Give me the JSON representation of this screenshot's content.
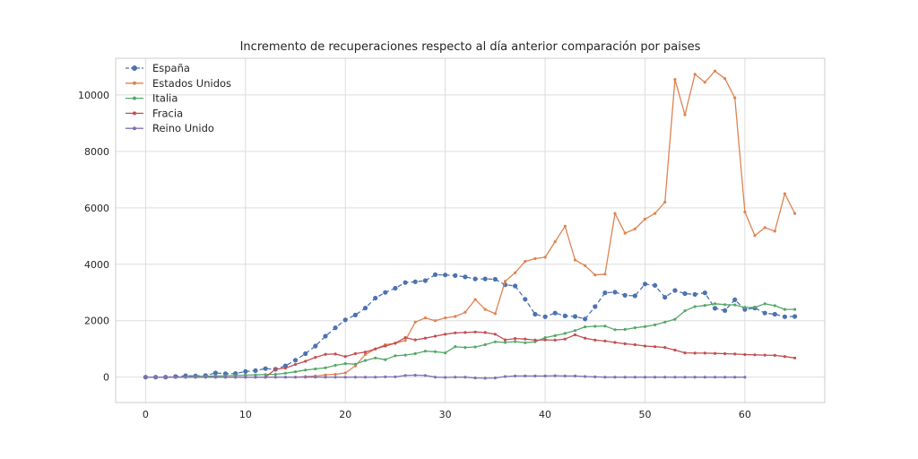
{
  "chart_data": {
    "type": "line",
    "title": "Incremento de recuperaciones respecto al día anterior comparación por paises",
    "xlabel": "",
    "ylabel": "",
    "xlim": [
      -3,
      68
    ],
    "ylim": [
      -900,
      11300
    ],
    "x_ticks": [
      0,
      10,
      20,
      30,
      40,
      50,
      60
    ],
    "y_ticks": [
      0,
      2000,
      4000,
      6000,
      8000,
      10000
    ],
    "grid": true,
    "legend_position": "upper-left",
    "series": [
      {
        "name": "España",
        "color": "#4c72b0",
        "dashed": true,
        "marker_radius": 2.6,
        "x": [
          0,
          1,
          2,
          3,
          4,
          5,
          6,
          7,
          8,
          9,
          10,
          11,
          12,
          13,
          14,
          15,
          16,
          17,
          18,
          19,
          20,
          21,
          22,
          23,
          24,
          25,
          26,
          27,
          28,
          29,
          30,
          31,
          32,
          33,
          34,
          35,
          36,
          37,
          38,
          39,
          40,
          41,
          42,
          43,
          44,
          45,
          46,
          47,
          48,
          49,
          50,
          51,
          52,
          53,
          54,
          55,
          56,
          57,
          58,
          59,
          60,
          61,
          62,
          63,
          64,
          65
        ],
        "values": [
          0,
          0,
          0,
          20,
          50,
          40,
          60,
          150,
          120,
          130,
          200,
          230,
          300,
          280,
          400,
          600,
          830,
          1100,
          1450,
          1750,
          2030,
          2200,
          2450,
          2800,
          3000,
          3150,
          3350,
          3380,
          3420,
          3630,
          3620,
          3600,
          3550,
          3480,
          3480,
          3470,
          3270,
          3230,
          2760,
          2230,
          2140,
          2270,
          2170,
          2150,
          2060,
          2500,
          2990,
          3010,
          2900,
          2880,
          3300,
          3250,
          2830,
          3070,
          2960,
          2930,
          2990,
          2440,
          2360,
          2740,
          2400,
          2450,
          2270,
          2230,
          2140,
          2150
        ]
      },
      {
        "name": "Estados Unidos",
        "color": "#dd8452",
        "dashed": false,
        "marker_radius": 1.6,
        "x": [
          0,
          1,
          2,
          3,
          4,
          5,
          6,
          7,
          8,
          9,
          10,
          11,
          12,
          13,
          14,
          15,
          16,
          17,
          18,
          19,
          20,
          21,
          22,
          23,
          24,
          25,
          26,
          27,
          28,
          29,
          30,
          31,
          32,
          33,
          34,
          35,
          36,
          37,
          38,
          39,
          40,
          41,
          42,
          43,
          44,
          45,
          46,
          47,
          48,
          49,
          50,
          51,
          52,
          53,
          54,
          55,
          56,
          57,
          58,
          59,
          60,
          61,
          62,
          63,
          64,
          65
        ],
        "values": [
          0,
          0,
          0,
          0,
          0,
          0,
          0,
          0,
          0,
          0,
          0,
          0,
          0,
          0,
          0,
          0,
          20,
          40,
          80,
          100,
          150,
          400,
          800,
          1000,
          1150,
          1200,
          1300,
          1950,
          2100,
          2000,
          2100,
          2150,
          2300,
          2750,
          2400,
          2250,
          3400,
          3700,
          4100,
          4200,
          4250,
          4800,
          5350,
          4150,
          3950,
          3620,
          3650,
          5800,
          5100,
          5250,
          5600,
          5800,
          6200,
          10550,
          9300,
          10730,
          10450,
          10850,
          10580,
          9900,
          5850,
          5020,
          5300,
          5170,
          6500,
          5800
        ]
      },
      {
        "name": "Italia",
        "color": "#55a868",
        "dashed": false,
        "marker_radius": 1.6,
        "x": [
          0,
          1,
          2,
          3,
          4,
          5,
          6,
          7,
          8,
          9,
          10,
          11,
          12,
          13,
          14,
          15,
          16,
          17,
          18,
          19,
          20,
          21,
          22,
          23,
          24,
          25,
          26,
          27,
          28,
          29,
          30,
          31,
          32,
          33,
          34,
          35,
          36,
          37,
          38,
          39,
          40,
          41,
          42,
          43,
          44,
          45,
          46,
          47,
          48,
          49,
          50,
          51,
          52,
          53,
          54,
          55,
          56,
          57,
          58,
          59,
          60,
          61,
          62,
          63,
          64,
          65
        ],
        "values": [
          0,
          0,
          0,
          0,
          10,
          20,
          30,
          40,
          50,
          60,
          70,
          80,
          90,
          100,
          140,
          190,
          250,
          290,
          330,
          420,
          480,
          460,
          590,
          680,
          620,
          760,
          780,
          830,
          920,
          900,
          860,
          1080,
          1050,
          1070,
          1150,
          1250,
          1230,
          1260,
          1220,
          1250,
          1400,
          1470,
          1550,
          1650,
          1780,
          1800,
          1810,
          1680,
          1690,
          1750,
          1790,
          1850,
          1950,
          2050,
          2350,
          2500,
          2540,
          2600,
          2570,
          2560,
          2470,
          2470,
          2600,
          2530,
          2400,
          2400
        ]
      },
      {
        "name": "Fracia",
        "color": "#c44e52",
        "dashed": false,
        "marker_radius": 1.6,
        "x": [
          0,
          1,
          2,
          3,
          4,
          5,
          6,
          7,
          8,
          9,
          10,
          11,
          12,
          13,
          14,
          15,
          16,
          17,
          18,
          19,
          20,
          21,
          22,
          23,
          24,
          25,
          26,
          27,
          28,
          29,
          30,
          31,
          32,
          33,
          34,
          35,
          36,
          37,
          38,
          39,
          40,
          41,
          42,
          43,
          44,
          45,
          46,
          47,
          48,
          49,
          50,
          51,
          52,
          53,
          54,
          55,
          56,
          57,
          58,
          59,
          60,
          61,
          62,
          63,
          64,
          65
        ],
        "values": [
          0,
          0,
          0,
          0,
          0,
          0,
          0,
          0,
          0,
          0,
          0,
          0,
          0,
          280,
          320,
          450,
          560,
          700,
          810,
          820,
          730,
          830,
          890,
          1000,
          1100,
          1200,
          1400,
          1320,
          1380,
          1450,
          1520,
          1570,
          1580,
          1600,
          1580,
          1520,
          1320,
          1370,
          1350,
          1310,
          1320,
          1310,
          1350,
          1500,
          1380,
          1310,
          1280,
          1230,
          1180,
          1150,
          1100,
          1080,
          1050,
          960,
          860,
          850,
          850,
          840,
          830,
          820,
          800,
          790,
          780,
          770,
          730,
          680
        ]
      },
      {
        "name": "Reino Unido",
        "color": "#8172b3",
        "dashed": false,
        "marker_radius": 1.6,
        "x": [
          0,
          1,
          2,
          3,
          4,
          5,
          6,
          7,
          8,
          9,
          10,
          11,
          12,
          13,
          14,
          15,
          16,
          17,
          18,
          19,
          20,
          21,
          22,
          23,
          24,
          25,
          26,
          27,
          28,
          29,
          30,
          31,
          32,
          33,
          34,
          35,
          36,
          37,
          38,
          39,
          40,
          41,
          42,
          43,
          44,
          45,
          46,
          47,
          48,
          49,
          50,
          51,
          52,
          53,
          54,
          55,
          56,
          57,
          58,
          59,
          60
        ],
        "values": [
          0,
          0,
          0,
          0,
          0,
          0,
          0,
          0,
          0,
          0,
          0,
          0,
          0,
          0,
          0,
          0,
          0,
          0,
          0,
          0,
          0,
          0,
          0,
          0,
          10,
          10,
          60,
          70,
          60,
          0,
          -10,
          0,
          0,
          -30,
          -40,
          -30,
          20,
          40,
          40,
          40,
          40,
          50,
          40,
          40,
          20,
          10,
          0,
          0,
          0,
          0,
          0,
          0,
          0,
          0,
          0,
          0,
          0,
          0,
          0,
          0,
          0
        ]
      }
    ]
  }
}
